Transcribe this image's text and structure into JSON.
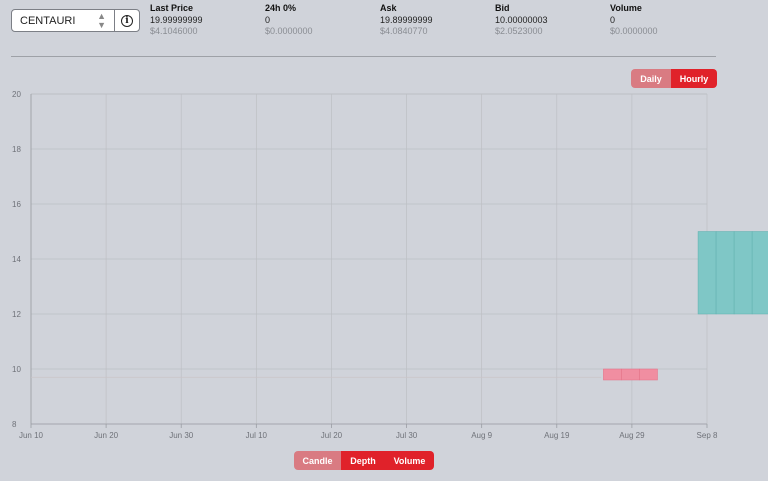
{
  "market_selector": {
    "value": "CENTAURI",
    "info_icon": "info-icon"
  },
  "stats": [
    {
      "label": "Last Price",
      "value": "19.99999999",
      "usd": "$4.1046000"
    },
    {
      "label": "24h 0%",
      "value": "0",
      "usd": "$0.0000000"
    },
    {
      "label": "Ask",
      "value": "19.89999999",
      "usd": "$4.0840770"
    },
    {
      "label": "Bid",
      "value": "10.00000003",
      "usd": "$2.0523000"
    },
    {
      "label": "Volume",
      "value": "0",
      "usd": "$0.0000000"
    }
  ],
  "interval_toggle": {
    "daily": "Daily",
    "hourly": "Hourly",
    "selected": "Hourly"
  },
  "view_toggle": {
    "candle": "Candle",
    "depth": "Depth",
    "volume": "Volume",
    "selected": "Depth"
  },
  "colors": {
    "accent": "#e0222a",
    "inactive": "#d97b82",
    "up_candle": "#7fc7c6",
    "down_candle": "#f08ea1"
  },
  "chart_data": {
    "type": "bar",
    "ylim": [
      8,
      20
    ],
    "y_ticks": [
      8,
      10,
      12,
      14,
      16,
      18,
      20
    ],
    "x_ticks": [
      "Jun 10",
      "Jun 20",
      "Jun 30",
      "Jul 10",
      "Jul 20",
      "Jul 30",
      "Aug 9",
      "Aug 19",
      "Aug 29",
      "Sep 8"
    ],
    "grid": true,
    "series": [
      {
        "kind": "bid",
        "color": "#f08ea1",
        "bars": [
          {
            "x": 25.8,
            "low": 9.6,
            "high": 10.0
          },
          {
            "x": 26.6,
            "low": 9.6,
            "high": 10.0
          },
          {
            "x": 27.4,
            "low": 9.6,
            "high": 10.0
          }
        ]
      },
      {
        "kind": "ask",
        "color": "#7fc7c6",
        "bars": [
          {
            "x": 30.0,
            "low": 12.0,
            "high": 15.0
          },
          {
            "x": 30.8,
            "low": 12.0,
            "high": 15.0
          },
          {
            "x": 31.6,
            "low": 12.0,
            "high": 15.0
          },
          {
            "x": 32.4,
            "low": 12.0,
            "high": 15.0
          },
          {
            "x": 33.2,
            "low": 12.0,
            "high": 15.0
          },
          {
            "x": 34.0,
            "low": 12.0,
            "high": 15.0
          }
        ]
      }
    ]
  }
}
